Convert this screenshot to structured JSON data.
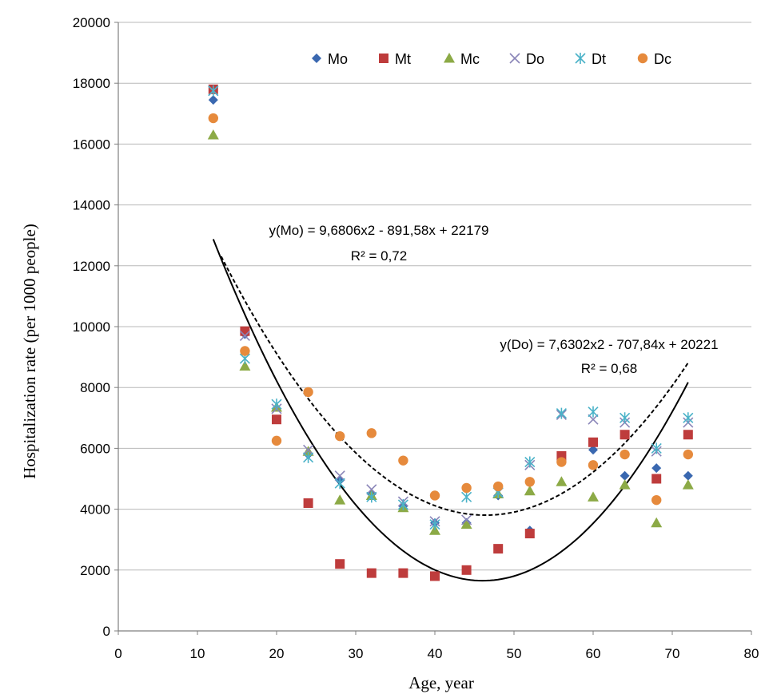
{
  "chart_data": {
    "type": "scatter",
    "xlabel": "Age, year",
    "ylabel": "Hospitalization rate (per 1000 people)",
    "xlim": [
      0,
      80
    ],
    "ylim": [
      0,
      20000
    ],
    "x_ticks": [
      "0",
      "10",
      "20",
      "30",
      "40",
      "50",
      "60",
      "70",
      "80"
    ],
    "y_ticks": [
      "0",
      "2000",
      "4000",
      "6000",
      "8000",
      "10000",
      "12000",
      "14000",
      "16000",
      "18000",
      "20000"
    ],
    "grid": "horizontal",
    "legend_position": "top",
    "series": [
      {
        "name": "Mo",
        "marker": "diamond",
        "color": "#3a68b0",
        "x": [
          12,
          16,
          20,
          24,
          28,
          32,
          36,
          40,
          44,
          48,
          52,
          56,
          60,
          64,
          68,
          72
        ],
        "y": [
          17450,
          9750,
          6950,
          5800,
          4950,
          4500,
          4100,
          3550,
          3550,
          4450,
          3300,
          5750,
          5950,
          5100,
          5350,
          5100
        ]
      },
      {
        "name": "Mt",
        "marker": "square",
        "color": "#be3c3c",
        "x": [
          12,
          16,
          20,
          24,
          28,
          32,
          36,
          40,
          44,
          48,
          52,
          56,
          60,
          64,
          68,
          72
        ],
        "y": [
          17800,
          9850,
          6950,
          4200,
          2200,
          1900,
          1900,
          1800,
          2000,
          2700,
          3200,
          5750,
          6200,
          6450,
          5000,
          6450
        ]
      },
      {
        "name": "Mc",
        "marker": "triangle",
        "color": "#8caa46",
        "x": [
          12,
          16,
          20,
          24,
          28,
          32,
          36,
          40,
          44,
          48,
          52,
          56,
          60,
          64,
          68,
          72
        ],
        "y": [
          16300,
          8700,
          7350,
          5900,
          4300,
          4450,
          4050,
          3300,
          3500,
          4500,
          4600,
          4900,
          4400,
          4800,
          3550,
          4800
        ]
      },
      {
        "name": "Do",
        "marker": "x",
        "color": "#8a85b8",
        "x": [
          12,
          16,
          20,
          24,
          28,
          32,
          36,
          40,
          44,
          48,
          52,
          56,
          60,
          64,
          68,
          72
        ],
        "y": [
          17750,
          9700,
          7300,
          5950,
          5100,
          4650,
          4250,
          3600,
          3650,
          4550,
          5450,
          7100,
          6950,
          6850,
          5900,
          6850
        ]
      },
      {
        "name": "Dt",
        "marker": "asterisk",
        "color": "#4ab2c8",
        "x": [
          12,
          16,
          20,
          24,
          28,
          32,
          36,
          40,
          44,
          48,
          52,
          56,
          60,
          64,
          68,
          72
        ],
        "y": [
          17750,
          8950,
          7450,
          5700,
          4850,
          4400,
          4150,
          3500,
          4400,
          4550,
          5550,
          7150,
          7200,
          7000,
          6000,
          7000
        ]
      },
      {
        "name": "Dc",
        "marker": "circle",
        "color": "#e68a3c",
        "x": [
          12,
          16,
          20,
          24,
          28,
          32,
          36,
          40,
          44,
          48,
          52,
          56,
          60,
          64,
          68,
          72
        ],
        "y": [
          16850,
          9200,
          6250,
          7850,
          6400,
          6500,
          5600,
          4450,
          4700,
          4750,
          4900,
          5550,
          5450,
          5800,
          4300,
          5800
        ]
      }
    ],
    "trendlines": [
      {
        "series": "Mo",
        "a": 9.6806,
        "b": -891.58,
        "c": 22179,
        "x_range": [
          12,
          72
        ],
        "style": "solid"
      },
      {
        "series": "Do",
        "a": 7.6302,
        "b": -707.84,
        "c": 20221,
        "x_range": [
          13,
          72
        ],
        "style": "dashed"
      }
    ],
    "annotations": [
      {
        "key": "mo_eq",
        "text": "y(Mo) = 9,6806x2 - 891,58x + 22179"
      },
      {
        "key": "mo_r2",
        "text": "R² = 0,72"
      },
      {
        "key": "do_eq",
        "text": "y(Do) = 7,6302x2 - 707,84x + 20221"
      },
      {
        "key": "do_r2",
        "text": "R² = 0,68"
      }
    ]
  }
}
